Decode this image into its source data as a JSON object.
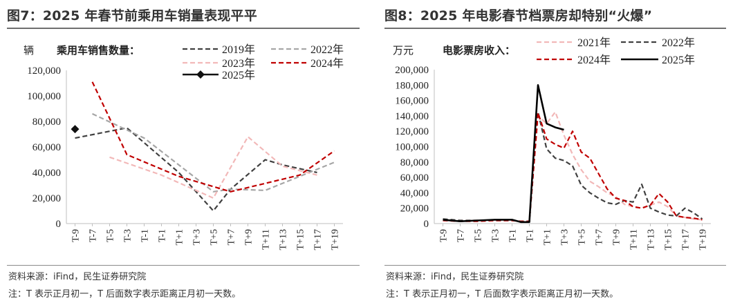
{
  "left": {
    "title": "图7：2025 年春节前乘用车销量表现平平",
    "source": "资料来源：iFind，民生证券研究院",
    "note": "注：T 表示正月初一，T 后面数字表示距离正月初一天数。",
    "chart_data": {
      "type": "line",
      "title": "乘用车销售数量：",
      "ylabel": "辆",
      "ylim": [
        0,
        120000
      ],
      "yticks": [
        "0",
        "20,000",
        "40,000",
        "60,000",
        "80,000",
        "100,000",
        "120,000"
      ],
      "ytick_values": [
        0,
        20000,
        40000,
        60000,
        80000,
        100000,
        120000
      ],
      "categories": [
        "T-9",
        "T-7",
        "T-5",
        "T-3",
        "T-1",
        "T-1",
        "T+1",
        "T+3",
        "T+5",
        "T+7",
        "T+9",
        "T+11",
        "T+13",
        "T+15",
        "T+17",
        "T+19"
      ],
      "grid": false,
      "legend_position": "top-right",
      "series": [
        {
          "name": "2019年",
          "color": "#404040",
          "dash": "dashed",
          "x": [
            0,
            3,
            6,
            8,
            9,
            11,
            12,
            14
          ],
          "values": [
            67000,
            75000,
            40000,
            10000,
            27000,
            50000,
            46000,
            40000
          ]
        },
        {
          "name": "2022年",
          "color": "#a6a6a6",
          "dash": "dashed",
          "x": [
            1,
            4,
            8,
            9,
            11,
            15
          ],
          "values": [
            86000,
            67000,
            25000,
            27000,
            26000,
            48000
          ]
        },
        {
          "name": "2023年",
          "color": "#f2b8b8",
          "dash": "dashed",
          "x": [
            2,
            5,
            8,
            10,
            12,
            14
          ],
          "values": [
            52000,
            38000,
            20000,
            68000,
            45000,
            38000
          ]
        },
        {
          "name": "2024年",
          "color": "#c00000",
          "dash": "dashed",
          "x": [
            1,
            3,
            6,
            9,
            13,
            15
          ],
          "values": [
            111000,
            54000,
            37000,
            25000,
            38000,
            57000
          ]
        },
        {
          "name": "2025年",
          "color": "#111111",
          "dash": "solid",
          "marker": "diamond",
          "x": [
            0
          ],
          "values": [
            74000
          ]
        }
      ]
    }
  },
  "right": {
    "title": "图8：2025 年电影春节档票房却特别“火爆”",
    "source": "资料来源：iFind，民生证券研究院",
    "note": "注：T 表示正月初一，T 后面数字表示距离正月初一天数。",
    "chart_data": {
      "type": "line",
      "title": "电影票房收入：",
      "ylabel": "万元",
      "ylim": [
        0,
        200000
      ],
      "yticks": [
        "0",
        "20,000",
        "40,000",
        "60,000",
        "80,000",
        "100,000",
        "120,000",
        "140,000",
        "160,000",
        "180,000",
        "200,000"
      ],
      "ytick_values": [
        0,
        20000,
        40000,
        60000,
        80000,
        100000,
        120000,
        140000,
        160000,
        180000,
        200000
      ],
      "categories": [
        "T-9",
        "T-7",
        "T-5",
        "T-3",
        "T-1",
        "T-1",
        "T+1",
        "T+3",
        "T+5",
        "T+7",
        "T+9",
        "T+11",
        "T+13",
        "T+15",
        "T+17",
        "T+19"
      ],
      "grid": false,
      "legend_position": "top",
      "series": [
        {
          "name": "2021年",
          "color": "#f2b8b8",
          "dash": "dashed",
          "x": [
            0,
            1,
            2,
            3,
            4,
            4.5,
            5,
            5.5,
            6,
            6.5,
            7,
            7.5,
            8,
            8.5,
            9,
            9.5,
            10,
            10.5,
            11,
            11.5,
            12,
            12.5,
            13,
            13.5,
            14,
            14.5,
            15
          ],
          "values": [
            5000,
            4000,
            4000,
            4000,
            4000,
            3000,
            3000,
            140000,
            130000,
            145000,
            115000,
            90000,
            70000,
            55000,
            48000,
            40000,
            35000,
            25000,
            22000,
            20000,
            24000,
            28000,
            22000,
            10000,
            8000,
            6000,
            5000
          ]
        },
        {
          "name": "2022年",
          "color": "#404040",
          "dash": "dashed",
          "x": [
            0,
            1,
            2,
            3,
            4,
            4.5,
            5,
            5.5,
            6,
            6.5,
            7,
            7.5,
            8,
            8.5,
            9,
            9.5,
            10,
            10.5,
            11,
            11.5,
            12,
            12.5,
            13,
            13.5,
            14,
            14.5,
            15
          ],
          "values": [
            6000,
            4000,
            4000,
            4000,
            4000,
            3000,
            3000,
            145000,
            97000,
            85000,
            82000,
            75000,
            50000,
            40000,
            33000,
            27000,
            25000,
            30000,
            28000,
            51000,
            20000,
            15000,
            11000,
            10000,
            20000,
            14000,
            6000
          ]
        },
        {
          "name": "2024年",
          "color": "#c00000",
          "dash": "dashed",
          "x": [
            0,
            1,
            2,
            3,
            4,
            4.5,
            5,
            5.5,
            6,
            6.5,
            7,
            7.5,
            8,
            8.5,
            9,
            9.5,
            10,
            10.5,
            11,
            11.5,
            12,
            12.5,
            13,
            13.5,
            14,
            14.5,
            15
          ],
          "values": [
            4000,
            3000,
            3000,
            4000,
            4000,
            3000,
            3000,
            144000,
            110000,
            103000,
            98000,
            120000,
            93000,
            85000,
            65000,
            45000,
            33000,
            30000,
            22000,
            20000,
            24000,
            39000,
            28000,
            10000,
            8000,
            7000,
            5000
          ]
        },
        {
          "name": "2025年",
          "color": "#000000",
          "dash": "solid",
          "x": [
            0,
            1,
            2,
            3,
            4,
            4.5,
            5,
            5.5,
            6,
            6.5,
            7
          ],
          "values": [
            5000,
            3000,
            4000,
            5000,
            5000,
            2000,
            2000,
            180000,
            130000,
            125000,
            122000
          ]
        }
      ]
    }
  }
}
